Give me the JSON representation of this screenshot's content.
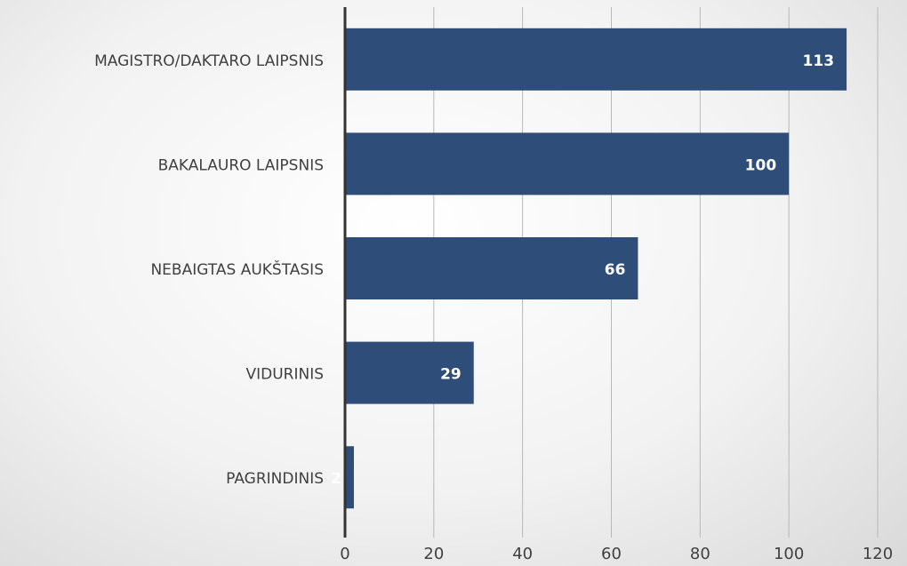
{
  "chart_data": {
    "type": "barh",
    "categories": [
      "MAGISTRO/DAKTARO LAIPSNIS",
      "BAKALAURO LAIPSNIS",
      "NEBAIGTAS AUKŠTASIS",
      "VIDURINIS",
      "PAGRINDINIS"
    ],
    "values": [
      113,
      100,
      66,
      29,
      2
    ],
    "color": "#2e4d78",
    "xlim": [
      0,
      120
    ],
    "xticks": [
      0,
      20,
      40,
      60,
      80,
      100,
      120
    ],
    "grid": true
  }
}
